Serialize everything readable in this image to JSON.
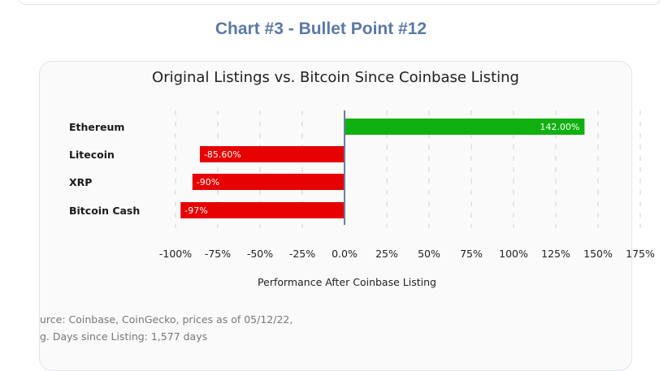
{
  "heading": "Chart #3 - Bullet Point #12",
  "chart_data": {
    "type": "bar",
    "orientation": "horizontal",
    "title": "Original Listings vs. Bitcoin Since Coinbase Listing",
    "categories": [
      "Ethereum",
      "Litecoin",
      "XRP",
      "Bitcoin Cash"
    ],
    "values": [
      142.0,
      -85.6,
      -90,
      -97
    ],
    "data_labels": [
      "142.00%",
      "-85.60%",
      "-90%",
      "-97%"
    ],
    "xlabel": "Performance After Coinbase Listing",
    "ylabel": "",
    "xlim": [
      -100,
      175
    ],
    "xticks": [
      -100,
      -75,
      -50,
      -25,
      0,
      25,
      50,
      75,
      100,
      125,
      150,
      175
    ],
    "xtick_labels": [
      "-100%",
      "-75%",
      "-50%",
      "-25%",
      "0.0%",
      "25%",
      "50%",
      "75%",
      "100%",
      "125%",
      "150%",
      "175%"
    ],
    "grid": true,
    "colors": {
      "positive": "#10b010",
      "negative": "#e60000",
      "zero_line": "#6a7f9e"
    }
  },
  "footnotes": [
    "urce: Coinbase, CoinGecko, prices as of 05/12/22,",
    "g. Days since Listing: 1,577 days"
  ]
}
